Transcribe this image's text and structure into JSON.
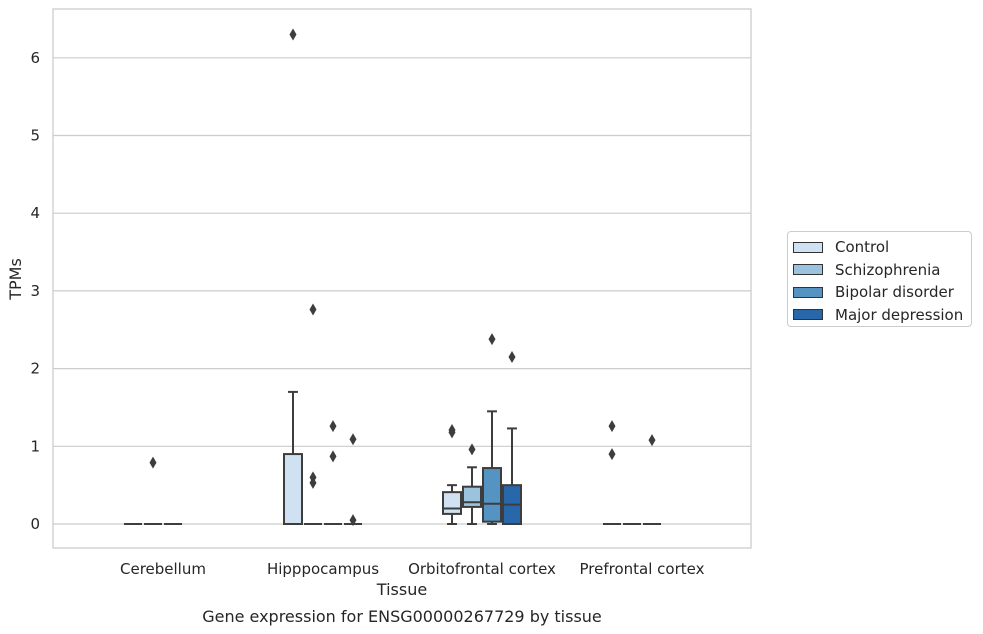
{
  "chart_data": {
    "type": "box",
    "title": "Gene expression for ENSG00000267729 by tissue",
    "xlabel": "Tissue",
    "ylabel": "TPMs",
    "ylim": [
      -0.31,
      6.63
    ],
    "yticks": [
      0,
      1,
      2,
      3,
      4,
      5,
      6
    ],
    "grid": true,
    "legend_position": "right",
    "categories": [
      "Cerebellum",
      "Hipppocampus",
      "Orbitofrontal cortex",
      "Prefrontal cortex"
    ],
    "series": [
      {
        "name": "Control",
        "color": "#d0e1f1"
      },
      {
        "name": "Schizophrenia",
        "color": "#9bc3de"
      },
      {
        "name": "Bipolar disorder",
        "color": "#5593c2"
      },
      {
        "name": "Major depression",
        "color": "#2767aa"
      }
    ],
    "boxes": [
      {
        "category": 0,
        "series": 0,
        "q1": 0,
        "median": 0,
        "q3": 0,
        "whisker_low": 0,
        "whisker_high": 0,
        "outliers": []
      },
      {
        "category": 0,
        "series": 1,
        "q1": 0,
        "median": 0,
        "q3": 0,
        "whisker_low": 0,
        "whisker_high": 0,
        "outliers": [
          0.79
        ]
      },
      {
        "category": 0,
        "series": 2,
        "q1": 0,
        "median": 0,
        "q3": 0,
        "whisker_low": 0,
        "whisker_high": 0,
        "outliers": []
      },
      {
        "category": 1,
        "series": 0,
        "q1": 0,
        "median": 0,
        "q3": 0.9,
        "whisker_low": 0,
        "whisker_high": 1.7,
        "outliers": [
          6.3
        ]
      },
      {
        "category": 1,
        "series": 1,
        "q1": 0,
        "median": 0,
        "q3": 0,
        "whisker_low": 0,
        "whisker_high": 0,
        "outliers": [
          2.76,
          0.6,
          0.53
        ]
      },
      {
        "category": 1,
        "series": 2,
        "q1": 0,
        "median": 0,
        "q3": 0,
        "whisker_low": 0,
        "whisker_high": 0,
        "outliers": [
          1.26,
          0.87
        ]
      },
      {
        "category": 1,
        "series": 3,
        "q1": 0,
        "median": 0,
        "q3": 0,
        "whisker_low": 0,
        "whisker_high": 0,
        "outliers": [
          1.09,
          0.05
        ]
      },
      {
        "category": 2,
        "series": 0,
        "q1": 0.13,
        "median": 0.2,
        "q3": 0.41,
        "whisker_low": 0,
        "whisker_high": 0.5,
        "outliers": [
          1.21,
          1.18
        ]
      },
      {
        "category": 2,
        "series": 1,
        "q1": 0.22,
        "median": 0.28,
        "q3": 0.48,
        "whisker_low": 0,
        "whisker_high": 0.73,
        "outliers": [
          0.96
        ]
      },
      {
        "category": 2,
        "series": 2,
        "q1": 0.03,
        "median": 0.26,
        "q3": 0.72,
        "whisker_low": 0,
        "whisker_high": 1.45,
        "outliers": [
          2.38
        ]
      },
      {
        "category": 2,
        "series": 3,
        "q1": 0,
        "median": 0.25,
        "q3": 0.5,
        "whisker_low": 0,
        "whisker_high": 1.23,
        "outliers": [
          2.15
        ]
      },
      {
        "category": 3,
        "series": 0,
        "q1": 0,
        "median": 0,
        "q3": 0,
        "whisker_low": 0,
        "whisker_high": 0,
        "outliers": [
          1.26,
          0.9
        ]
      },
      {
        "category": 3,
        "series": 1,
        "q1": 0,
        "median": 0,
        "q3": 0,
        "whisker_low": 0,
        "whisker_high": 0,
        "outliers": []
      },
      {
        "category": 3,
        "series": 2,
        "q1": 0,
        "median": 0,
        "q3": 0,
        "whisker_low": 0,
        "whisker_high": 0,
        "outliers": [
          1.08
        ]
      }
    ]
  }
}
